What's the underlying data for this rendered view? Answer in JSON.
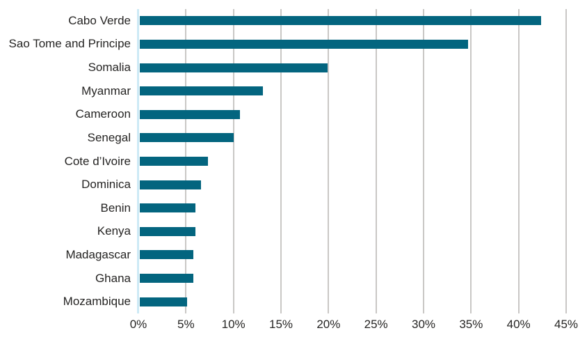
{
  "chart_data": {
    "type": "bar",
    "orientation": "horizontal",
    "title": "",
    "xlabel": "",
    "ylabel": "",
    "categories": [
      "Cabo Verde",
      "Sao Tome and Principe",
      "Somalia",
      "Myanmar",
      "Cameroon",
      "Senegal",
      "Cote d’Ivoire",
      "Dominica",
      "Benin",
      "Kenya",
      "Madagascar",
      "Ghana",
      "Mozambique"
    ],
    "values": [
      42.4,
      34.7,
      19.9,
      13.1,
      10.7,
      10.0,
      7.3,
      6.6,
      6.0,
      6.0,
      5.8,
      5.8,
      5.1
    ],
    "value_unit": "%",
    "x_axis": {
      "min": 0,
      "max": 45,
      "step": 5,
      "tick_labels": [
        "0%",
        "5%",
        "10%",
        "15%",
        "20%",
        "25%",
        "30%",
        "35%",
        "40%",
        "45%"
      ]
    },
    "grid": true,
    "legend": false,
    "colors": {
      "bar": "#03657f",
      "gridline": "#c9c7c5",
      "zero_axis": "#cdeaf6",
      "label_text": "#252423",
      "background": "#ffffff"
    }
  }
}
